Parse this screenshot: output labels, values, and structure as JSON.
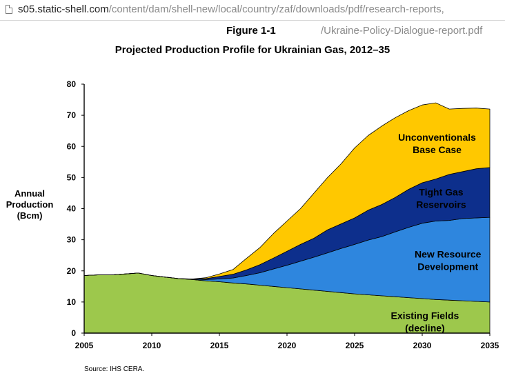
{
  "browser": {
    "url_host": "s05.static-shell.com",
    "url_path": "/content/dam/shell-new/local/country/zaf/downloads/pdf/research-reports,",
    "url_path_continued": "/Ukraine-Policy-Dialogue-report.pdf"
  },
  "figure": {
    "number": "Figure 1-1",
    "source": "Source: IHS CERA."
  },
  "chart_data": {
    "type": "area",
    "stacked": true,
    "title": "Projected Production Profile for Ukrainian Gas, 2012–35",
    "ylabel": "Annual Production (Bcm)",
    "ylabel_lines": [
      "Annual",
      "Production",
      "(Bcm)"
    ],
    "xlabel": "",
    "xlim": [
      2005,
      2035
    ],
    "ylim": [
      0,
      80
    ],
    "xticks": [
      2005,
      2010,
      2015,
      2020,
      2025,
      2030,
      2035
    ],
    "yticks": [
      0,
      10,
      20,
      30,
      40,
      50,
      60,
      70,
      80
    ],
    "grid": false,
    "legend": "none (labels drawn inside areas)",
    "x": [
      2005,
      2006,
      2007,
      2008,
      2009,
      2010,
      2011,
      2012,
      2013,
      2014,
      2015,
      2016,
      2017,
      2018,
      2019,
      2020,
      2021,
      2022,
      2023,
      2024,
      2025,
      2026,
      2027,
      2028,
      2029,
      2030,
      2031,
      2032,
      2033,
      2034,
      2035
    ],
    "series": [
      {
        "name": "Existing Fields (decline)",
        "label_lines": [
          "Existing Fields",
          "(decline)"
        ],
        "color": "#9DC84C",
        "values": [
          18.5,
          18.7,
          18.7,
          19.0,
          19.3,
          18.5,
          18.0,
          17.5,
          17.2,
          16.8,
          16.5,
          16.1,
          15.8,
          15.4,
          15.0,
          14.6,
          14.2,
          13.8,
          13.4,
          13.0,
          12.6,
          12.3,
          12.0,
          11.7,
          11.4,
          11.1,
          10.8,
          10.6,
          10.4,
          10.2,
          10.0
        ]
      },
      {
        "name": "New Resource Development",
        "label_lines": [
          "New Resource",
          "Development"
        ],
        "color": "#2E86DE",
        "values": [
          0,
          0,
          0,
          0,
          0,
          0,
          0,
          0,
          0.1,
          0.4,
          0.9,
          1.6,
          2.7,
          4.0,
          5.6,
          7.2,
          8.9,
          10.6,
          12.4,
          14.2,
          15.9,
          17.6,
          19.0,
          20.8,
          22.6,
          24.2,
          25.2,
          25.6,
          26.4,
          26.8,
          27.2
        ]
      },
      {
        "name": "Tight Gas Reservoirs",
        "label_lines": [
          "Tight Gas",
          "Reservoirs"
        ],
        "color": "#0D2F8C",
        "values": [
          0,
          0,
          0,
          0,
          0,
          0,
          0,
          0,
          0.1,
          0.3,
          0.8,
          1.2,
          1.8,
          2.6,
          3.5,
          4.5,
          5.4,
          6.1,
          7.4,
          7.9,
          8.5,
          9.6,
          10.3,
          11.1,
          12.2,
          13.0,
          13.5,
          14.8,
          15.1,
          15.8,
          16.0
        ]
      },
      {
        "name": "Unconventionals Base Case",
        "label_lines": [
          "Unconventionals",
          "Base Case"
        ],
        "color": "#FFC800",
        "values": [
          0,
          0,
          0,
          0,
          0,
          0,
          0,
          0,
          0,
          0.3,
          0.8,
          1.5,
          3.7,
          5.5,
          7.9,
          9.7,
          11.5,
          14.5,
          16.8,
          19.3,
          22.5,
          24.0,
          25.2,
          25.6,
          25.3,
          25.0,
          24.5,
          21.0,
          20.3,
          19.5,
          18.8
        ]
      }
    ]
  }
}
